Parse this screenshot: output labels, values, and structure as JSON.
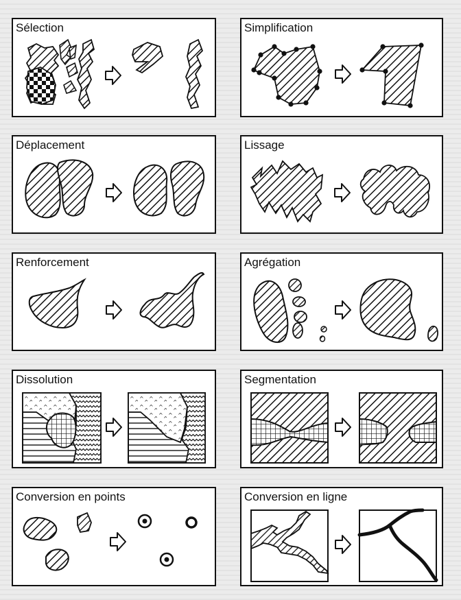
{
  "panels": [
    {
      "id": "selection",
      "title": "Sélection"
    },
    {
      "id": "simplification",
      "title": "Simplification"
    },
    {
      "id": "deplacement",
      "title": "Déplacement"
    },
    {
      "id": "lissage",
      "title": "Lissage"
    },
    {
      "id": "renforcement",
      "title": "Renforcement"
    },
    {
      "id": "agregation",
      "title": "Agrégation"
    },
    {
      "id": "dissolution",
      "title": "Dissolution"
    },
    {
      "id": "segmentation",
      "title": "Segmentation"
    },
    {
      "id": "conversion_points",
      "title": "Conversion en points"
    },
    {
      "id": "conversion_ligne",
      "title": "Conversion en ligne"
    }
  ],
  "colors": {
    "ink": "#111111",
    "paper": "#ffffff",
    "background": "#ececec"
  }
}
